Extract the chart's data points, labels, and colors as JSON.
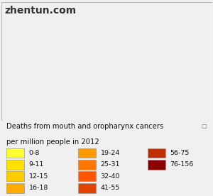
{
  "title_line1": "Deaths from mouth and oropharynx cancers",
  "title_line2": "per million people in 2012",
  "watermark": "zhentun.com",
  "legend_items": [
    {
      "label": "0-8",
      "color": "#FFFF33"
    },
    {
      "label": "9-11",
      "color": "#FFE100"
    },
    {
      "label": "12-15",
      "color": "#FFCC00"
    },
    {
      "label": "16-18",
      "color": "#FFAA00"
    },
    {
      "label": "19-24",
      "color": "#FF9900"
    },
    {
      "label": "25-31",
      "color": "#FF7700"
    },
    {
      "label": "32-40",
      "color": "#FF5500"
    },
    {
      "label": "41-55",
      "color": "#E04400"
    },
    {
      "label": "56-75",
      "color": "#C03000"
    },
    {
      "label": "76-156",
      "color": "#8B0000"
    }
  ],
  "country_colors": {
    "India": "#8B0000",
    "Pakistan": "#8B0000",
    "Bangladesh": "#8B0000",
    "Papua New Guinea": "#8B0000",
    "Hungary": "#C03000",
    "Romania": "#C03000",
    "Bulgaria": "#C03000",
    "Nepal": "#C03000",
    "Sri Lanka": "#C03000",
    "Myanmar": "#C03000",
    "Cambodia": "#C03000",
    "Lao PDR": "#C03000",
    "Laos": "#C03000",
    "Russia": "#E04400",
    "Ukraine": "#E04400",
    "Belarus": "#E04400",
    "Kazakhstan": "#E04400",
    "Uzbekistan": "#E04400",
    "Philippines": "#E04400",
    "Vietnam": "#E04400",
    "Brazil": "#E04400",
    "China": "#FF5500",
    "Thailand": "#FF5500",
    "Indonesia": "#FF5500",
    "Malaysia": "#FF5500",
    "France": "#FF5500",
    "Portugal": "#FF5500",
    "Spain": "#FF5500",
    "Italy": "#FF5500",
    "Greece": "#FF5500",
    "Germany": "#FF7700",
    "Poland": "#FF7700",
    "Czech Rep.": "#FF7700",
    "Czech Republic": "#FF7700",
    "Czechia": "#FF7700",
    "Slovakia": "#FF7700",
    "Croatia": "#FF7700",
    "Serbia": "#FF7700",
    "Turkey": "#FF7700",
    "Iran": "#FF7700",
    "Iraq": "#FF7700",
    "Afghanistan": "#FF7700",
    "Mongolia": "#FF7700",
    "United States": "#FF9900",
    "United States of America": "#FF9900",
    "Canada": "#FF9900",
    "Mexico": "#FF9900",
    "Colombia": "#FF9900",
    "Venezuela": "#FF9900",
    "Peru": "#FF9900",
    "Bolivia": "#FF9900",
    "Paraguay": "#FF9900",
    "Argentina": "#FF9900",
    "Chile": "#FF9900",
    "United Kingdom": "#FF9900",
    "Netherlands": "#FF9900",
    "Belgium": "#FF9900",
    "Switzerland": "#FF9900",
    "Austria": "#FF9900",
    "Denmark": "#FF9900",
    "Sweden": "#FF9900",
    "Norway": "#FF9900",
    "Finland": "#FF9900",
    "South Korea": "#FF9900",
    "Korea": "#FF9900",
    "Japan": "#FF9900",
    "Saudi Arabia": "#FF9900",
    "Yemen": "#FF9900",
    "Egypt": "#FF9900",
    "Libya": "#FF9900",
    "Algeria": "#FF9900",
    "Morocco": "#FF9900",
    "Sudan": "#FF9900",
    "Ethiopia": "#FF9900",
    "Kenya": "#FF9900",
    "Tanzania": "#FF9900",
    "Nigeria": "#FFAA00",
    "Niger": "#FFAA00",
    "Mali": "#FFAA00",
    "Senegal": "#FFAA00",
    "Ghana": "#FFAA00",
    "Cameroon": "#FFAA00",
    "Congo": "#FFAA00",
    "Dem. Rep. Congo": "#FFAA00",
    "Angola": "#FFAA00",
    "Mozambique": "#FFAA00",
    "Zambia": "#FFAA00",
    "Zimbabwe": "#FFAA00",
    "Madagascar": "#FFAA00",
    "Somalia": "#FFAA00",
    "Uganda": "#FFAA00",
    "South Africa": "#FFCC00",
    "Botswana": "#FFCC00",
    "Namibia": "#FFCC00",
    "Australia": "#FFCC00",
    "New Zealand": "#FFCC00",
    "Greenland": "#FFE100",
    "Antarctica": "#FFFF33"
  },
  "default_color": "#FF9900",
  "ocean_color": "#ffffff",
  "bg_color": "#f0f0f0",
  "map_bg": "#ffffff",
  "border_color": "#bbbbbb",
  "country_edge_color": "#ffffff",
  "country_edge_width": 0.15,
  "font_size_title": 7.2,
  "font_size_legend": 6.8,
  "font_size_watermark": 10
}
